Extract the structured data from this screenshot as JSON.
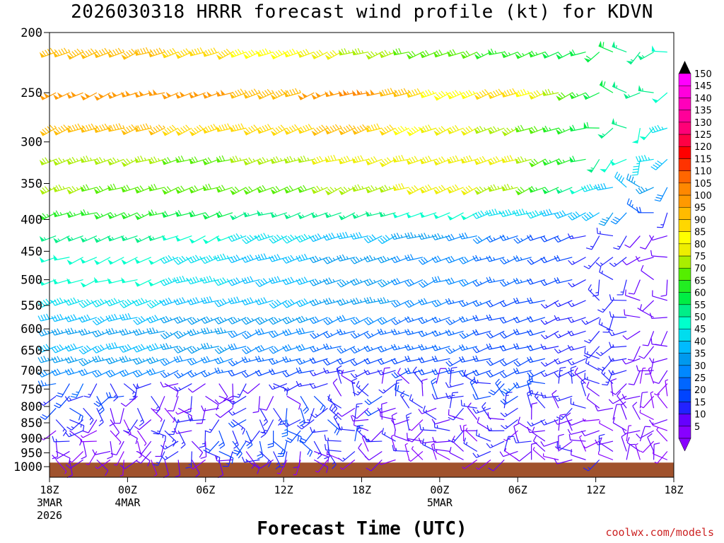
{
  "chart_data": {
    "type": "wind-barb time-height cross section",
    "title": "2026030318 HRRR forecast wind profile (kt) for KDVN",
    "xlabel": "Forecast Time (UTC)",
    "credit": "coolwx.com/models",
    "y_axis": {
      "label": "",
      "levels": [
        200,
        250,
        300,
        350,
        400,
        450,
        500,
        550,
        600,
        650,
        700,
        750,
        800,
        850,
        900,
        950,
        1000
      ],
      "range": [
        1000,
        200
      ],
      "scale": "log-pressure"
    },
    "x_axis": {
      "range_hours": [
        0,
        48
      ],
      "ticks": [
        {
          "hour": 0,
          "label": [
            "18Z",
            "3MAR",
            "2026"
          ]
        },
        {
          "hour": 6,
          "label": [
            "00Z",
            "4MAR"
          ]
        },
        {
          "hour": 12,
          "label": [
            "06Z"
          ]
        },
        {
          "hour": 18,
          "label": [
            "12Z"
          ]
        },
        {
          "hour": 24,
          "label": [
            "18Z"
          ]
        },
        {
          "hour": 30,
          "label": [
            "00Z",
            "5MAR"
          ]
        },
        {
          "hour": 36,
          "label": [
            "06Z"
          ]
        },
        {
          "hour": 42,
          "label": [
            "12Z"
          ]
        },
        {
          "hour": 48,
          "label": [
            "18Z"
          ]
        }
      ]
    },
    "colorbar": {
      "unit": "kt",
      "levels": [
        5,
        10,
        15,
        20,
        25,
        30,
        35,
        40,
        45,
        50,
        55,
        60,
        65,
        70,
        75,
        80,
        85,
        90,
        95,
        100,
        105,
        110,
        115,
        120,
        125,
        130,
        135,
        140,
        145,
        150
      ],
      "colors": [
        "#8800ff",
        "#6600ff",
        "#2222ff",
        "#0044ff",
        "#0066ff",
        "#0088ff",
        "#0099ee",
        "#00bbff",
        "#00ddee",
        "#00ffcc",
        "#00ee88",
        "#00ee44",
        "#22ee22",
        "#55ee00",
        "#aaee00",
        "#eeee00",
        "#ffff00",
        "#ffd700",
        "#ffbb00",
        "#ff9900",
        "#ff8800",
        "#ff6600",
        "#ff3300",
        "#ff0000",
        "#ff0044",
        "#ff0077",
        "#ff0099",
        "#ff00bb",
        "#ff00dd",
        "#ff00ff"
      ]
    },
    "terrain_color": "#a0522d",
    "surface_pressure_mb": 985,
    "wind_field_model": {
      "note": "approximate speed (kt) at each level for hours 0, 6, 12, 18, 24, 30, 36, 42, 48",
      "hours": [
        0,
        6,
        12,
        18,
        24,
        30,
        36,
        42,
        48
      ],
      "speed_by_level": {
        "215": [
          95,
          95,
          90,
          85,
          75,
          70,
          65,
          60,
          50
        ],
        "250": [
          100,
          100,
          100,
          95,
          105,
          85,
          90,
          60,
          50
        ],
        "285": [
          95,
          95,
          90,
          90,
          95,
          80,
          75,
          60,
          45
        ],
        "320": [
          75,
          75,
          70,
          75,
          80,
          80,
          80,
          55,
          40
        ],
        "355": [
          75,
          70,
          70,
          70,
          75,
          80,
          75,
          45,
          30
        ],
        "390": [
          65,
          65,
          60,
          55,
          55,
          50,
          45,
          40,
          15
        ],
        "425": [
          55,
          55,
          50,
          45,
          40,
          35,
          25,
          15,
          10
        ],
        "460": [
          50,
          50,
          45,
          40,
          35,
          30,
          25,
          15,
          10
        ],
        "500": [
          50,
          50,
          45,
          40,
          35,
          30,
          25,
          15,
          10
        ],
        "540": [
          45,
          45,
          40,
          40,
          35,
          30,
          20,
          15,
          10
        ],
        "575": [
          40,
          40,
          35,
          35,
          30,
          25,
          20,
          15,
          10
        ],
        "605": [
          35,
          35,
          35,
          30,
          25,
          25,
          20,
          15,
          10
        ],
        "640": [
          40,
          40,
          35,
          30,
          25,
          25,
          20,
          15,
          10
        ],
        "670": [
          35,
          35,
          30,
          25,
          20,
          20,
          20,
          15,
          10
        ],
        "700": [
          30,
          30,
          25,
          20,
          15,
          20,
          20,
          15,
          10
        ],
        "735": [
          25,
          15,
          10,
          15,
          10,
          15,
          20,
          10,
          5
        ],
        "770": [
          20,
          15,
          10,
          15,
          15,
          15,
          20,
          10,
          5
        ],
        "805": [
          20,
          10,
          10,
          15,
          15,
          15,
          15,
          10,
          5
        ],
        "840": [
          15,
          10,
          15,
          20,
          15,
          10,
          15,
          10,
          5
        ],
        "875": [
          10,
          10,
          15,
          20,
          15,
          10,
          10,
          10,
          5
        ],
        "910": [
          10,
          10,
          15,
          20,
          15,
          10,
          10,
          10,
          5
        ],
        "945": [
          10,
          10,
          15,
          15,
          10,
          10,
          10,
          10,
          5
        ],
        "975": [
          10,
          5,
          10,
          10,
          5,
          5,
          5,
          10,
          5
        ]
      }
    }
  }
}
